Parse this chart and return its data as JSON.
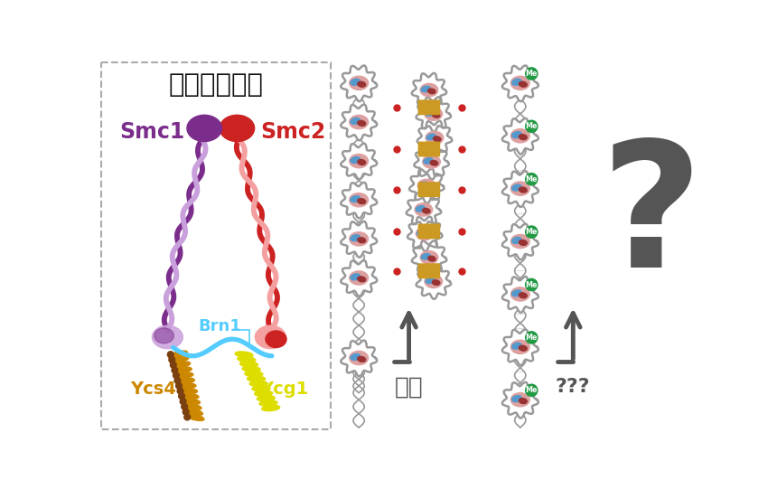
{
  "bg_color": "#ffffff",
  "panel1_title": "コンデンシン",
  "panel1_title_color": "#111111",
  "smc1_color": "#7b2d8b",
  "smc1_light": "#c9a0dc",
  "smc2_color": "#cc2222",
  "smc2_light": "#f4a0a0",
  "smc1_label": "Smc1",
  "smc2_label": "Smc2",
  "smc1_label_color": "#7b2d8b",
  "smc2_label_color": "#cc2222",
  "brn1_label": "Brn1",
  "brn1_color": "#55ccff",
  "ycs4_label": "Ycs4",
  "ycs4_color": "#cc8800",
  "ycg1_label": "Ycg1",
  "ycg1_color": "#dddd00",
  "arrow_color": "#555555",
  "gyoshu_label": "凝集",
  "question_label": "?",
  "qqq_label": "???",
  "me_label": "Me",
  "me_bg": "#229944",
  "me_text_color": "#ffffff",
  "dna_color": "#999999",
  "nucleosome_blue": "#5599cc",
  "nucleosome_red": "#993333",
  "nucleosome_pink": "#dda0a0",
  "condensin_gold": "#cc9922",
  "panel_border_color": "#aaaaaa"
}
